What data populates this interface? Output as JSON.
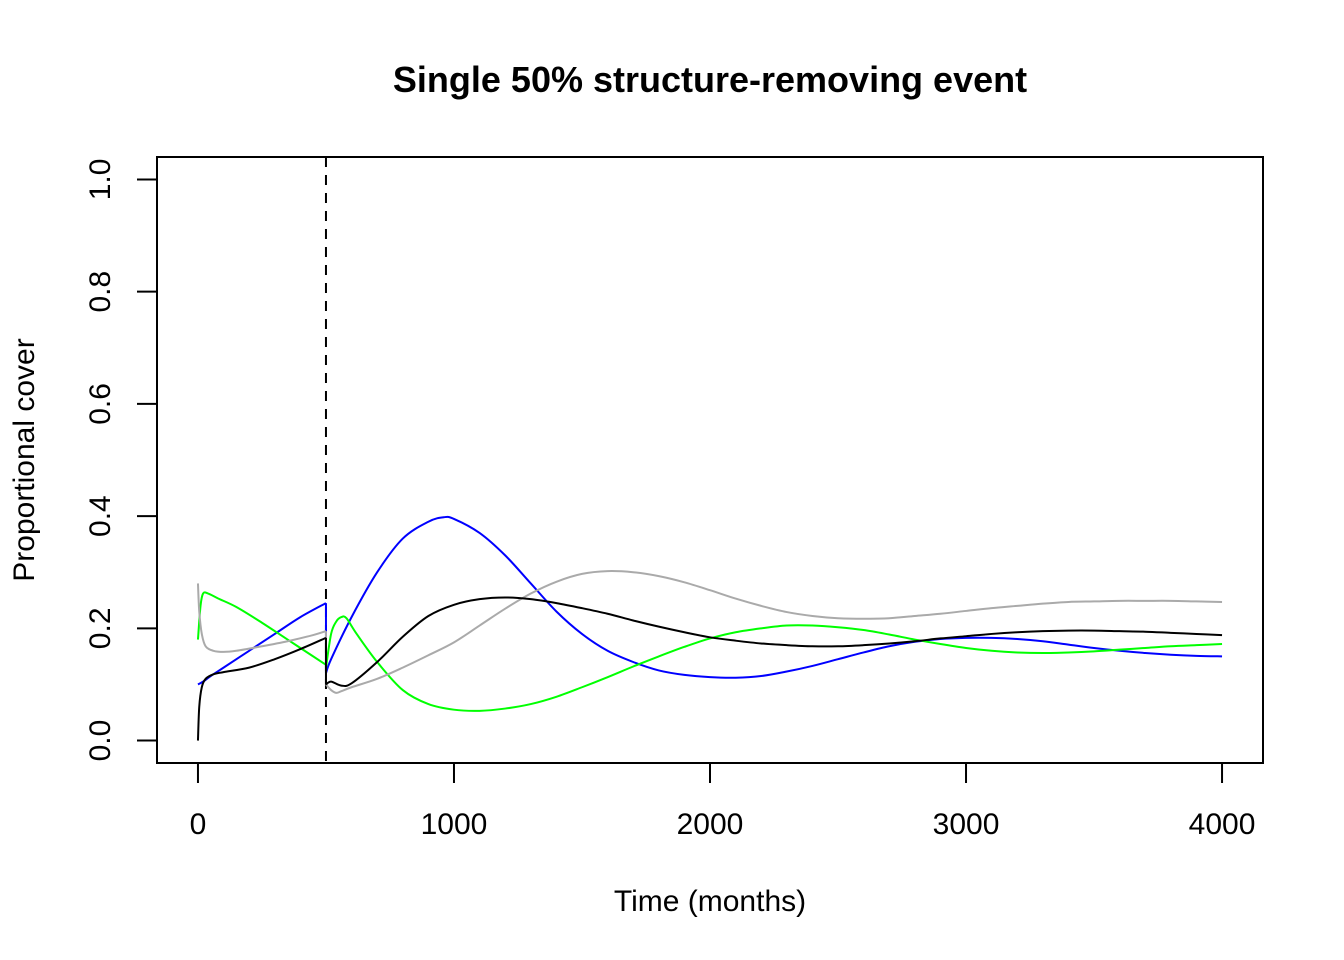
{
  "chart_data": {
    "type": "line",
    "title": "Single 50% structure-removing event",
    "xlabel": "Time (months)",
    "ylabel": "Proportional cover",
    "xlim": [
      -160,
      4160
    ],
    "ylim": [
      -0.04,
      1.04
    ],
    "x_ticks": [
      0,
      1000,
      2000,
      3000,
      4000
    ],
    "y_ticks": [
      0.0,
      0.2,
      0.4,
      0.6,
      0.8,
      1.0
    ],
    "x_tick_labels": [
      "0",
      "1000",
      "2000",
      "3000",
      "4000"
    ],
    "y_tick_labels": [
      "0.0",
      "0.2",
      "0.4",
      "0.6",
      "0.8",
      "1.0"
    ],
    "grid": false,
    "legend": "none",
    "event_line": {
      "x": 500,
      "style": "dashed",
      "color": "#000000"
    },
    "series": [
      {
        "color": "#0000ff",
        "points": [
          [
            0,
            0.1
          ],
          [
            20,
            0.105
          ],
          [
            50,
            0.115
          ],
          [
            100,
            0.13
          ],
          [
            200,
            0.16
          ],
          [
            300,
            0.19
          ],
          [
            400,
            0.22
          ],
          [
            500,
            0.245
          ],
          [
            500,
            0.12
          ],
          [
            520,
            0.145
          ],
          [
            600,
            0.22
          ],
          [
            700,
            0.3
          ],
          [
            800,
            0.36
          ],
          [
            900,
            0.39
          ],
          [
            960,
            0.398
          ],
          [
            1000,
            0.395
          ],
          [
            1100,
            0.37
          ],
          [
            1200,
            0.33
          ],
          [
            1300,
            0.28
          ],
          [
            1400,
            0.23
          ],
          [
            1500,
            0.19
          ],
          [
            1600,
            0.16
          ],
          [
            1700,
            0.14
          ],
          [
            1800,
            0.125
          ],
          [
            1900,
            0.117
          ],
          [
            2000,
            0.113
          ],
          [
            2100,
            0.112
          ],
          [
            2200,
            0.115
          ],
          [
            2300,
            0.123
          ],
          [
            2400,
            0.133
          ],
          [
            2500,
            0.145
          ],
          [
            2600,
            0.157
          ],
          [
            2700,
            0.168
          ],
          [
            2800,
            0.176
          ],
          [
            2900,
            0.181
          ],
          [
            3000,
            0.183
          ],
          [
            3100,
            0.183
          ],
          [
            3200,
            0.181
          ],
          [
            3300,
            0.177
          ],
          [
            3400,
            0.171
          ],
          [
            3500,
            0.165
          ],
          [
            3600,
            0.16
          ],
          [
            3700,
            0.156
          ],
          [
            3800,
            0.153
          ],
          [
            3900,
            0.151
          ],
          [
            4000,
            0.15
          ]
        ]
      },
      {
        "color": "#00ff00",
        "points": [
          [
            0,
            0.18
          ],
          [
            10,
            0.24
          ],
          [
            20,
            0.262
          ],
          [
            40,
            0.262
          ],
          [
            80,
            0.253
          ],
          [
            150,
            0.238
          ],
          [
            250,
            0.21
          ],
          [
            350,
            0.18
          ],
          [
            450,
            0.15
          ],
          [
            500,
            0.135
          ],
          [
            500,
            0.13
          ],
          [
            520,
            0.19
          ],
          [
            540,
            0.212
          ],
          [
            560,
            0.22
          ],
          [
            580,
            0.218
          ],
          [
            620,
            0.19
          ],
          [
            700,
            0.14
          ],
          [
            800,
            0.09
          ],
          [
            900,
            0.065
          ],
          [
            1000,
            0.055
          ],
          [
            1100,
            0.053
          ],
          [
            1200,
            0.057
          ],
          [
            1300,
            0.065
          ],
          [
            1400,
            0.078
          ],
          [
            1500,
            0.095
          ],
          [
            1600,
            0.113
          ],
          [
            1700,
            0.132
          ],
          [
            1800,
            0.15
          ],
          [
            1900,
            0.167
          ],
          [
            2000,
            0.182
          ],
          [
            2100,
            0.193
          ],
          [
            2200,
            0.2
          ],
          [
            2300,
            0.205
          ],
          [
            2400,
            0.205
          ],
          [
            2500,
            0.202
          ],
          [
            2600,
            0.197
          ],
          [
            2700,
            0.189
          ],
          [
            2800,
            0.18
          ],
          [
            2900,
            0.172
          ],
          [
            3000,
            0.165
          ],
          [
            3100,
            0.16
          ],
          [
            3200,
            0.157
          ],
          [
            3300,
            0.156
          ],
          [
            3400,
            0.157
          ],
          [
            3500,
            0.159
          ],
          [
            3600,
            0.162
          ],
          [
            3700,
            0.165
          ],
          [
            3800,
            0.168
          ],
          [
            3900,
            0.17
          ],
          [
            4000,
            0.172
          ]
        ]
      },
      {
        "color": "#aaaaaa",
        "points": [
          [
            0,
            0.28
          ],
          [
            5,
            0.23
          ],
          [
            15,
            0.19
          ],
          [
            30,
            0.168
          ],
          [
            60,
            0.16
          ],
          [
            100,
            0.158
          ],
          [
            150,
            0.16
          ],
          [
            250,
            0.168
          ],
          [
            350,
            0.177
          ],
          [
            450,
            0.188
          ],
          [
            500,
            0.195
          ],
          [
            500,
            0.1
          ],
          [
            520,
            0.09
          ],
          [
            540,
            0.085
          ],
          [
            560,
            0.088
          ],
          [
            600,
            0.095
          ],
          [
            700,
            0.11
          ],
          [
            800,
            0.13
          ],
          [
            900,
            0.152
          ],
          [
            1000,
            0.175
          ],
          [
            1100,
            0.205
          ],
          [
            1200,
            0.235
          ],
          [
            1300,
            0.262
          ],
          [
            1400,
            0.283
          ],
          [
            1500,
            0.297
          ],
          [
            1600,
            0.302
          ],
          [
            1700,
            0.3
          ],
          [
            1800,
            0.293
          ],
          [
            1900,
            0.282
          ],
          [
            2000,
            0.268
          ],
          [
            2100,
            0.253
          ],
          [
            2200,
            0.24
          ],
          [
            2300,
            0.229
          ],
          [
            2400,
            0.222
          ],
          [
            2500,
            0.218
          ],
          [
            2600,
            0.217
          ],
          [
            2700,
            0.218
          ],
          [
            2800,
            0.222
          ],
          [
            2900,
            0.226
          ],
          [
            3000,
            0.231
          ],
          [
            3100,
            0.236
          ],
          [
            3200,
            0.24
          ],
          [
            3300,
            0.244
          ],
          [
            3400,
            0.247
          ],
          [
            3500,
            0.248
          ],
          [
            3600,
            0.249
          ],
          [
            3700,
            0.249
          ],
          [
            3800,
            0.249
          ],
          [
            3900,
            0.248
          ],
          [
            4000,
            0.247
          ]
        ]
      },
      {
        "color": "#000000",
        "points": [
          [
            0,
            0.0
          ],
          [
            5,
            0.06
          ],
          [
            15,
            0.095
          ],
          [
            30,
            0.11
          ],
          [
            60,
            0.118
          ],
          [
            100,
            0.122
          ],
          [
            200,
            0.13
          ],
          [
            300,
            0.145
          ],
          [
            400,
            0.163
          ],
          [
            500,
            0.183
          ],
          [
            500,
            0.1
          ],
          [
            520,
            0.105
          ],
          [
            560,
            0.098
          ],
          [
            600,
            0.102
          ],
          [
            700,
            0.14
          ],
          [
            800,
            0.185
          ],
          [
            900,
            0.222
          ],
          [
            1000,
            0.242
          ],
          [
            1100,
            0.252
          ],
          [
            1200,
            0.255
          ],
          [
            1300,
            0.252
          ],
          [
            1400,
            0.245
          ],
          [
            1500,
            0.236
          ],
          [
            1600,
            0.226
          ],
          [
            1700,
            0.214
          ],
          [
            1800,
            0.203
          ],
          [
            1900,
            0.193
          ],
          [
            2000,
            0.184
          ],
          [
            2100,
            0.178
          ],
          [
            2200,
            0.173
          ],
          [
            2300,
            0.17
          ],
          [
            2400,
            0.168
          ],
          [
            2500,
            0.168
          ],
          [
            2600,
            0.17
          ],
          [
            2700,
            0.173
          ],
          [
            2800,
            0.177
          ],
          [
            2900,
            0.182
          ],
          [
            3000,
            0.186
          ],
          [
            3100,
            0.19
          ],
          [
            3200,
            0.193
          ],
          [
            3300,
            0.195
          ],
          [
            3400,
            0.196
          ],
          [
            3500,
            0.196
          ],
          [
            3600,
            0.195
          ],
          [
            3700,
            0.194
          ],
          [
            3800,
            0.192
          ],
          [
            3900,
            0.19
          ],
          [
            4000,
            0.188
          ]
        ]
      }
    ]
  }
}
